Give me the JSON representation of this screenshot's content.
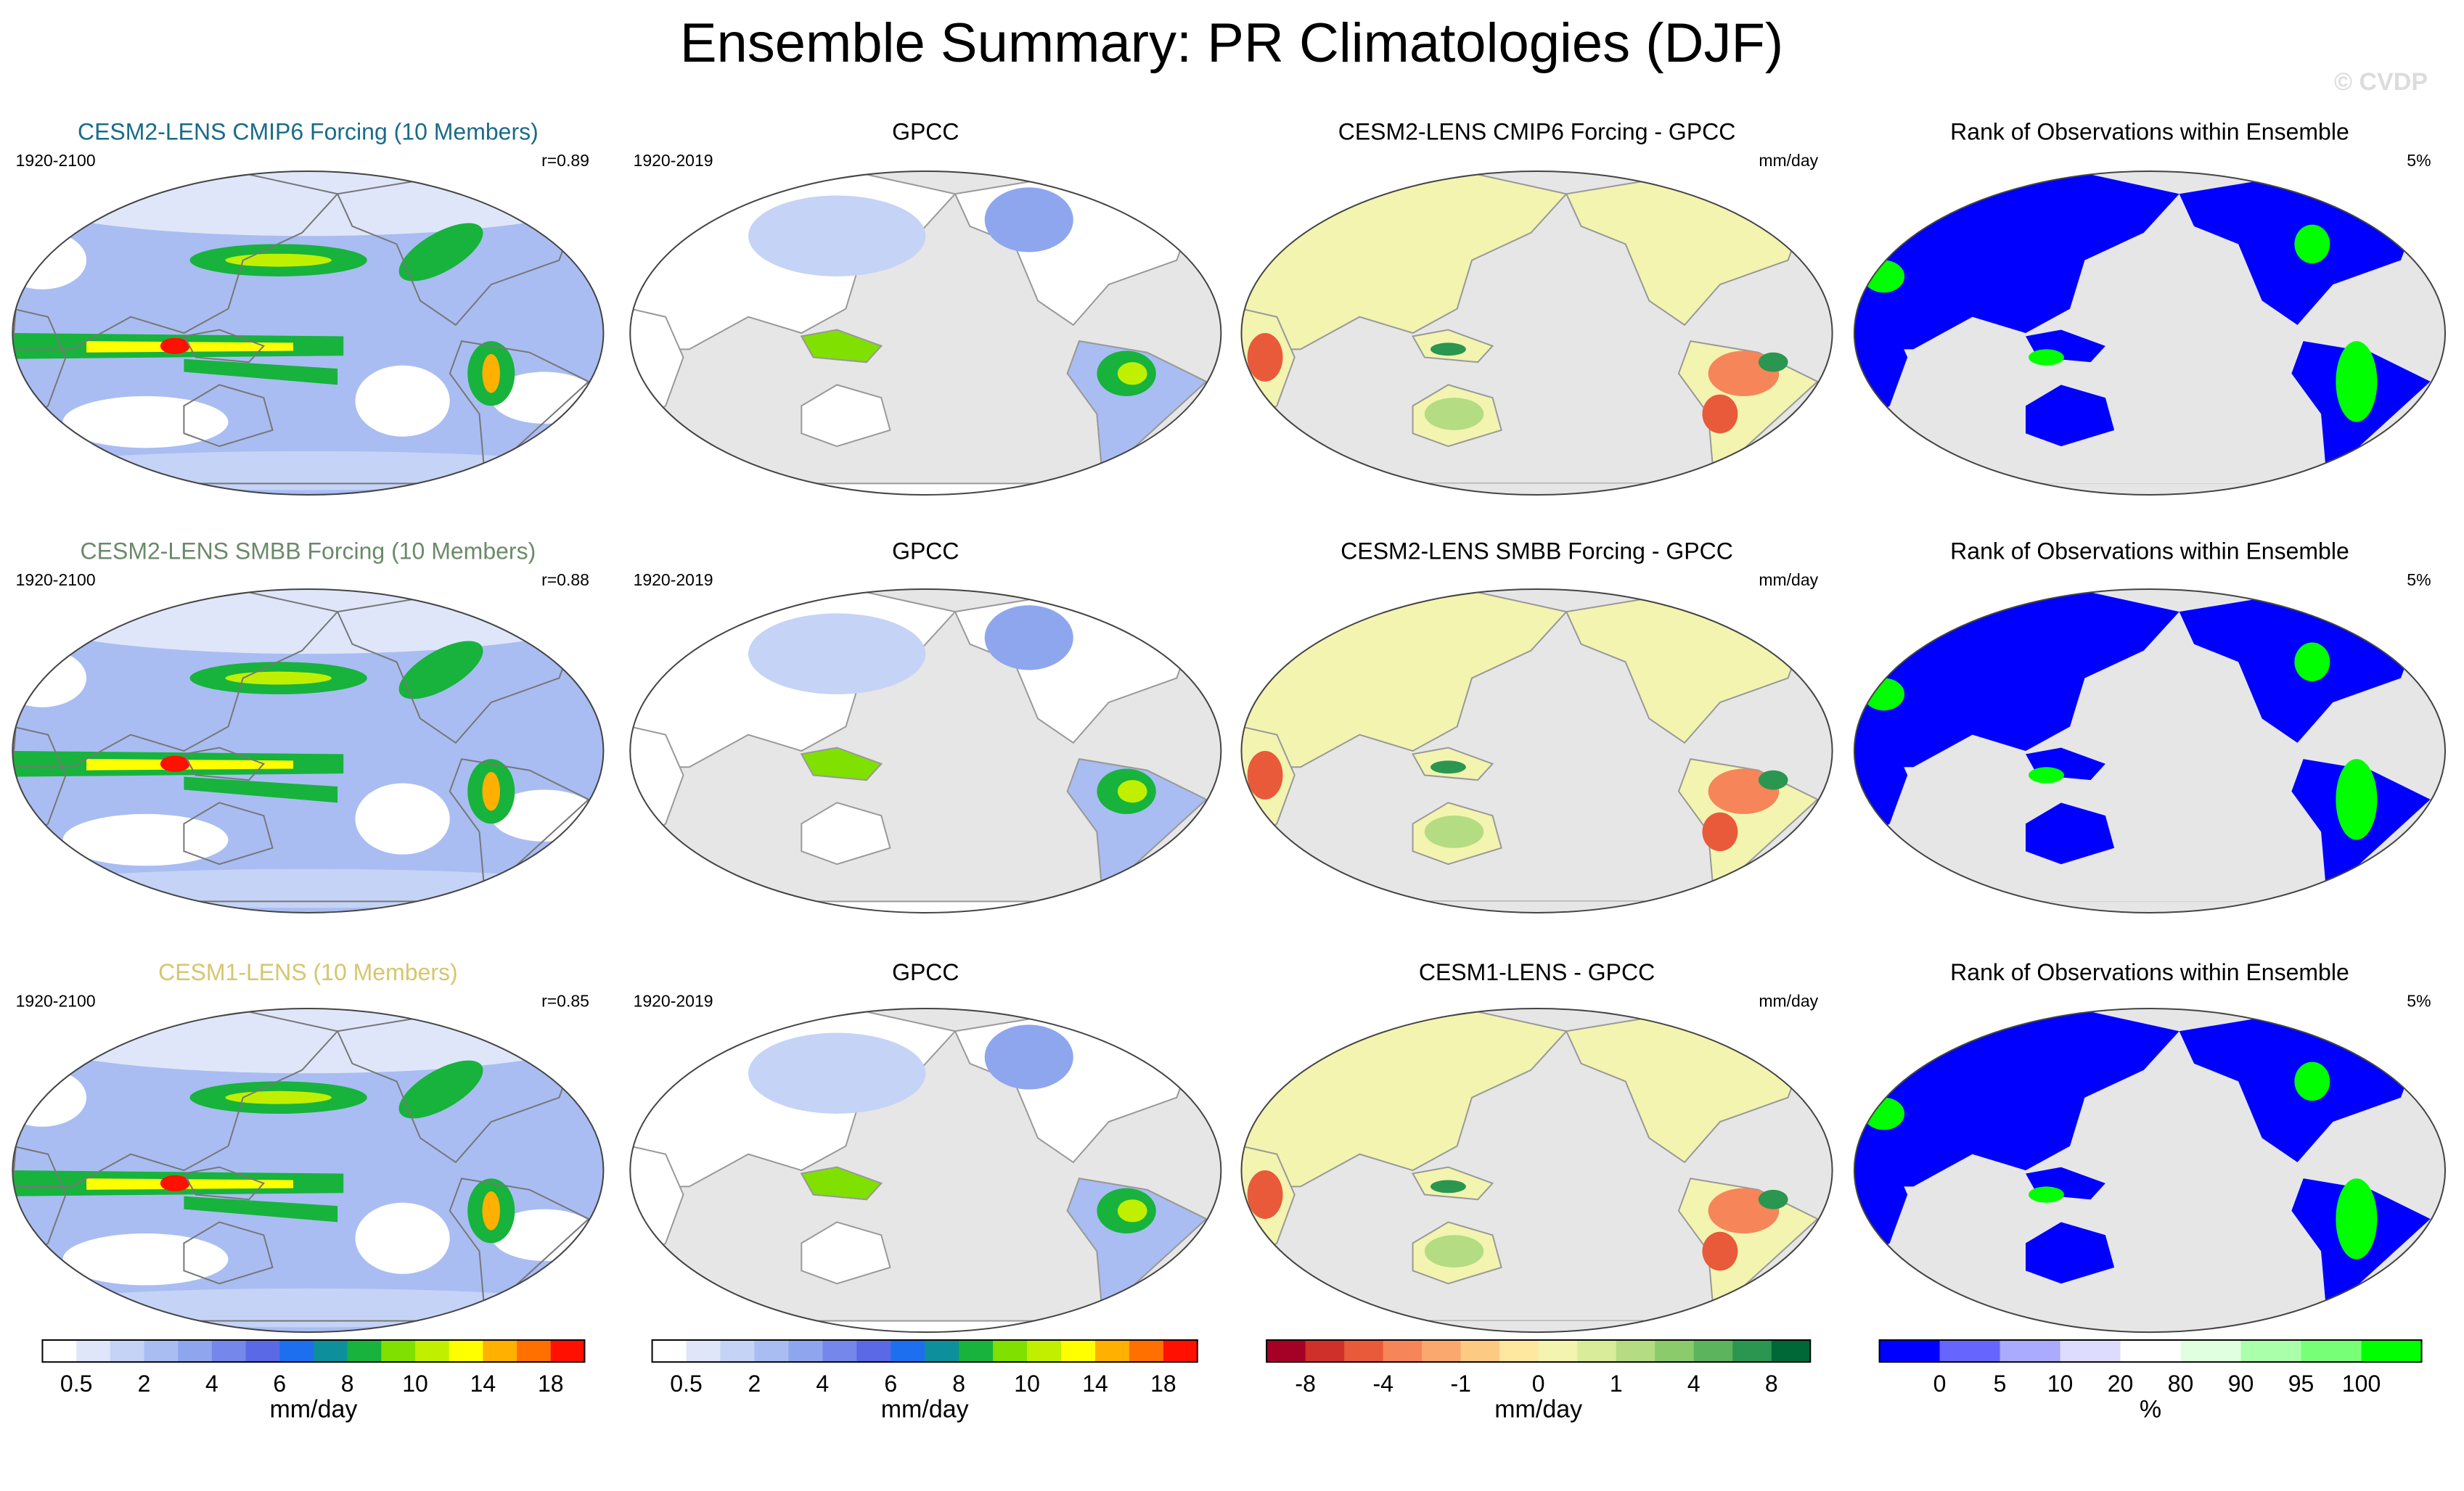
{
  "title": "Ensemble Summary: PR Climatologies (DJF)",
  "watermark": "© CVDP",
  "rows": [
    {
      "panels": [
        {
          "title": "CESM2-LENS CMIP6 Forcing (10 Members)",
          "title_color": "#1a6b8a",
          "left": "1920-2100",
          "right": "r=0.89"
        },
        {
          "title": "GPCC",
          "left": "1920-2019"
        },
        {
          "title": "CESM2-LENS CMIP6 Forcing - GPCC",
          "right": "mm/day"
        },
        {
          "title": "Rank of Observations within Ensemble",
          "right": "5%"
        }
      ]
    },
    {
      "panels": [
        {
          "title": "CESM2-LENS SMBB Forcing (10 Members)",
          "title_color": "#6b8a6b",
          "left": "1920-2100",
          "right": "r=0.88"
        },
        {
          "title": "GPCC",
          "left": "1920-2019"
        },
        {
          "title": "CESM2-LENS SMBB Forcing - GPCC",
          "right": "mm/day"
        },
        {
          "title": "Rank of Observations within Ensemble",
          "right": "5%"
        }
      ]
    },
    {
      "panels": [
        {
          "title": "CESM1-LENS (10 Members)",
          "title_color": "#d6c66e",
          "left": "1920-2100",
          "right": "r=0.85"
        },
        {
          "title": "GPCC",
          "left": "1920-2019"
        },
        {
          "title": "CESM1-LENS - GPCC",
          "right": "mm/day"
        },
        {
          "title": "Rank of Observations within Ensemble",
          "right": "5%"
        }
      ]
    }
  ],
  "colorbars": [
    {
      "colors": [
        "#ffffff",
        "#dfe6fa",
        "#c5d3f6",
        "#a9bdf2",
        "#8ea6ee",
        "#7388ea",
        "#5a6ae6",
        "#1e6ff0",
        "#0e8f9c",
        "#17b33c",
        "#80e000",
        "#c0f000",
        "#ffff00",
        "#ffb000",
        "#ff7000",
        "#ff1000"
      ],
      "labels": [
        0.5,
        2,
        4,
        6,
        8,
        10,
        14,
        18
      ],
      "units": "mm/day"
    },
    {
      "colors": [
        "#ffffff",
        "#dfe6fa",
        "#c5d3f6",
        "#a9bdf2",
        "#8ea6ee",
        "#7388ea",
        "#5a6ae6",
        "#1e6ff0",
        "#0e8f9c",
        "#17b33c",
        "#80e000",
        "#c0f000",
        "#ffff00",
        "#ffb000",
        "#ff7000",
        "#ff1000"
      ],
      "labels": [
        0.5,
        2,
        4,
        6,
        8,
        10,
        14,
        18
      ],
      "units": "mm/day"
    },
    {
      "colors": [
        "#a50026",
        "#d0302a",
        "#e85a3a",
        "#f6855a",
        "#fba86e",
        "#fdca84",
        "#fee8a0",
        "#f2f4b0",
        "#d8ec9a",
        "#b4dc82",
        "#8ccb6c",
        "#5cb45c",
        "#2a9650",
        "#006837"
      ],
      "labels": [
        -8,
        -4,
        -1,
        0,
        1,
        4,
        8
      ],
      "units": "mm/day"
    },
    {
      "colors": [
        "#0000ff",
        "#6666ff",
        "#aaaaff",
        "#dddcff",
        "#ffffff",
        "#e0ffe0",
        "#aaffaa",
        "#77ff77",
        "#00ff00"
      ],
      "labels": [
        0,
        5,
        10,
        20,
        80,
        90,
        95,
        100
      ],
      "units": "%"
    }
  ]
}
